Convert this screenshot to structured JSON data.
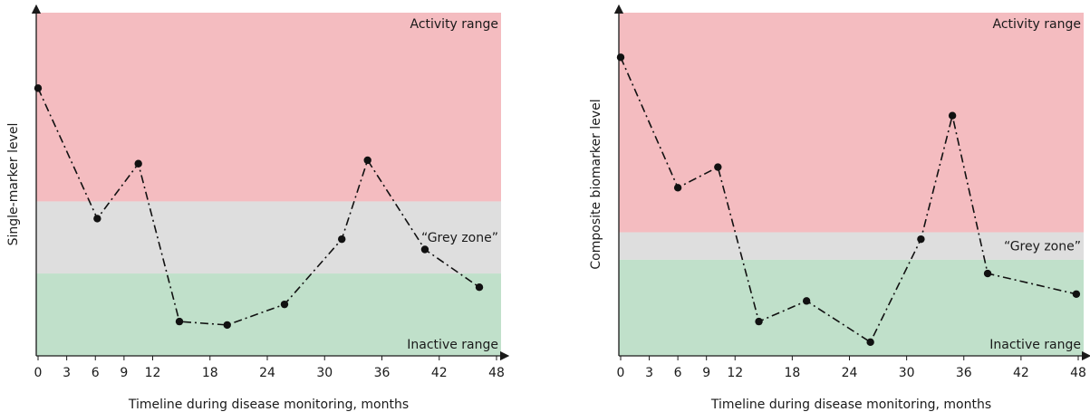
{
  "chart_data": [
    {
      "type": "line",
      "ylabel": "Single-marker level",
      "xlabel": "Timeline during disease monitoring, months",
      "xlim": [
        0,
        48
      ],
      "x_ticks": [
        "0",
        "3",
        "6",
        "9",
        "12",
        "18",
        "24",
        "30",
        "36",
        "42",
        "48"
      ],
      "zones": [
        {
          "name": "active",
          "label": "Activity range",
          "color": "#f4bcc0",
          "from": 0.45,
          "to": 1.0
        },
        {
          "name": "grey",
          "label": "“Grey zone”",
          "color": "#dedede",
          "from": 0.24,
          "to": 0.45
        },
        {
          "name": "inactive",
          "label": "Inactive range",
          "color": "#c0e0ca",
          "from": 0.0,
          "to": 0.24
        }
      ],
      "series": [
        {
          "line_style": "dash-dot",
          "color": "#111111",
          "x": [
            0,
            6.2,
            10.5,
            14.8,
            19.8,
            25.8,
            31.8,
            34.5,
            40.5,
            46.2
          ],
          "y": [
            0.78,
            0.4,
            0.56,
            0.1,
            0.09,
            0.15,
            0.34,
            0.57,
            0.31,
            0.2
          ]
        }
      ]
    },
    {
      "type": "line",
      "ylabel": "Composite biomarker level",
      "xlabel": "Timeline during disease monitoring, months",
      "xlim": [
        0,
        48
      ],
      "x_ticks": [
        "0",
        "3",
        "6",
        "9",
        "12",
        "18",
        "24",
        "30",
        "36",
        "42",
        "48"
      ],
      "zones": [
        {
          "name": "active",
          "label": "Activity range",
          "color": "#f4bcc0",
          "from": 0.36,
          "to": 1.0
        },
        {
          "name": "grey",
          "label": "“Grey zone”",
          "color": "#dedede",
          "from": 0.28,
          "to": 0.36
        },
        {
          "name": "inactive",
          "label": "Inactive range",
          "color": "#c0e0ca",
          "from": 0.0,
          "to": 0.28
        }
      ],
      "series": [
        {
          "line_style": "dash-dot",
          "color": "#111111",
          "x": [
            0,
            6.0,
            10.2,
            14.5,
            19.5,
            26.2,
            31.5,
            34.8,
            38.5,
            47.8
          ],
          "y": [
            0.87,
            0.49,
            0.55,
            0.1,
            0.16,
            0.04,
            0.34,
            0.7,
            0.24,
            0.18
          ]
        }
      ]
    }
  ]
}
